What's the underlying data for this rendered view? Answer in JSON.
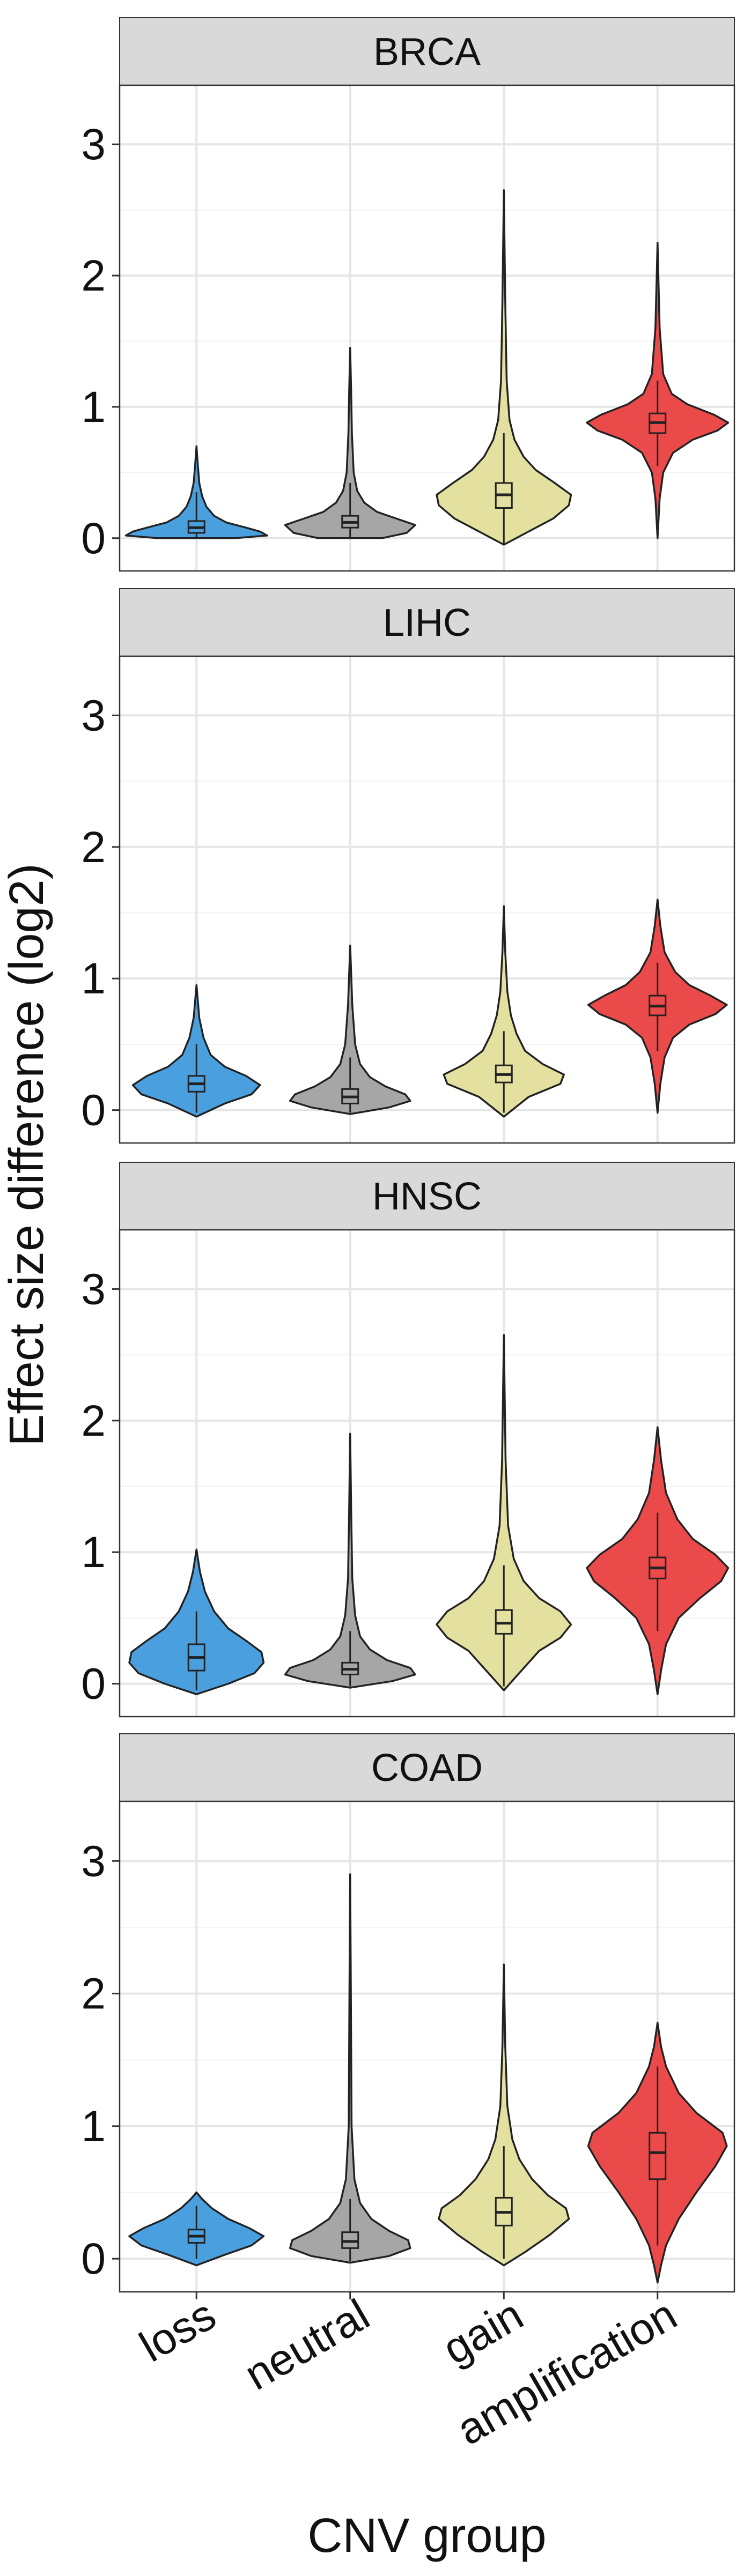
{
  "chart_data": {
    "type": "violin",
    "facet_by": "cancer type",
    "xlabel": "CNV group",
    "ylabel": "Effect size difference (log2)",
    "ylim": [
      -0.25,
      3.45
    ],
    "yticks": [
      0,
      1,
      2,
      3
    ],
    "grid": true,
    "legend": "none",
    "categories": [
      "loss",
      "neutral",
      "gain",
      "amplification"
    ],
    "colors": {
      "loss": "#4A9FDF",
      "neutral": "#A6A6A6",
      "gain": "#E3E0A0",
      "amplification": "#EA4A4A"
    },
    "facet_strip_color": "#D9D9D9",
    "panels": [
      {
        "label": "BRCA",
        "groups": [
          {
            "category": "loss",
            "min": 0.0,
            "max": 0.7,
            "q1": 0.04,
            "median": 0.08,
            "q3": 0.13,
            "whisker_low": 0.0,
            "whisker_high": 0.35,
            "density": [
              [
                0.0,
                0.55
              ],
              [
                0.02,
                1.0
              ],
              [
                0.05,
                0.9
              ],
              [
                0.08,
                0.7
              ],
              [
                0.12,
                0.42
              ],
              [
                0.17,
                0.25
              ],
              [
                0.24,
                0.14
              ],
              [
                0.32,
                0.08
              ],
              [
                0.42,
                0.04
              ],
              [
                0.55,
                0.02
              ],
              [
                0.7,
                0.0
              ]
            ]
          },
          {
            "category": "neutral",
            "min": 0.0,
            "max": 1.45,
            "q1": 0.08,
            "median": 0.12,
            "q3": 0.17,
            "whisker_low": 0.0,
            "whisker_high": 0.42,
            "density": [
              [
                0.0,
                0.45
              ],
              [
                0.04,
                0.8
              ],
              [
                0.1,
                0.92
              ],
              [
                0.15,
                0.65
              ],
              [
                0.2,
                0.38
              ],
              [
                0.27,
                0.2
              ],
              [
                0.36,
                0.1
              ],
              [
                0.5,
                0.05
              ],
              [
                0.8,
                0.025
              ],
              [
                1.1,
                0.015
              ],
              [
                1.45,
                0.0
              ]
            ]
          },
          {
            "category": "gain",
            "min": -0.05,
            "max": 2.65,
            "q1": 0.23,
            "median": 0.33,
            "q3": 0.42,
            "whisker_low": -0.05,
            "whisker_high": 0.8,
            "density": [
              [
                -0.05,
                0.0
              ],
              [
                0.05,
                0.35
              ],
              [
                0.15,
                0.7
              ],
              [
                0.25,
                0.92
              ],
              [
                0.33,
                0.95
              ],
              [
                0.42,
                0.72
              ],
              [
                0.52,
                0.45
              ],
              [
                0.62,
                0.28
              ],
              [
                0.75,
                0.15
              ],
              [
                0.9,
                0.08
              ],
              [
                1.2,
                0.04
              ],
              [
                1.8,
                0.02
              ],
              [
                2.65,
                0.0
              ]
            ]
          },
          {
            "category": "amplification",
            "min": 0.0,
            "max": 2.25,
            "q1": 0.8,
            "median": 0.88,
            "q3": 0.95,
            "whisker_low": 0.55,
            "whisker_high": 1.2,
            "density": [
              [
                0.0,
                0.0
              ],
              [
                0.3,
                0.03
              ],
              [
                0.5,
                0.08
              ],
              [
                0.65,
                0.22
              ],
              [
                0.75,
                0.5
              ],
              [
                0.82,
                0.85
              ],
              [
                0.88,
                1.0
              ],
              [
                0.94,
                0.8
              ],
              [
                1.02,
                0.42
              ],
              [
                1.1,
                0.2
              ],
              [
                1.25,
                0.08
              ],
              [
                1.6,
                0.03
              ],
              [
                2.25,
                0.0
              ]
            ]
          }
        ]
      },
      {
        "label": "LIHC",
        "groups": [
          {
            "category": "loss",
            "min": -0.05,
            "max": 0.95,
            "q1": 0.14,
            "median": 0.2,
            "q3": 0.26,
            "whisker_low": -0.02,
            "whisker_high": 0.5,
            "density": [
              [
                -0.05,
                0.0
              ],
              [
                0.05,
                0.4
              ],
              [
                0.12,
                0.78
              ],
              [
                0.19,
                0.9
              ],
              [
                0.26,
                0.7
              ],
              [
                0.33,
                0.4
              ],
              [
                0.42,
                0.2
              ],
              [
                0.55,
                0.1
              ],
              [
                0.7,
                0.04
              ],
              [
                0.95,
                0.0
              ]
            ]
          },
          {
            "category": "neutral",
            "min": -0.03,
            "max": 1.25,
            "q1": 0.05,
            "median": 0.1,
            "q3": 0.16,
            "whisker_low": -0.02,
            "whisker_high": 0.4,
            "density": [
              [
                -0.03,
                0.0
              ],
              [
                0.02,
                0.55
              ],
              [
                0.07,
                0.85
              ],
              [
                0.12,
                0.78
              ],
              [
                0.18,
                0.5
              ],
              [
                0.25,
                0.28
              ],
              [
                0.35,
                0.14
              ],
              [
                0.5,
                0.07
              ],
              [
                0.8,
                0.03
              ],
              [
                1.25,
                0.0
              ]
            ]
          },
          {
            "category": "gain",
            "min": -0.05,
            "max": 1.55,
            "q1": 0.21,
            "median": 0.27,
            "q3": 0.34,
            "whisker_low": -0.02,
            "whisker_high": 0.6,
            "density": [
              [
                -0.05,
                0.0
              ],
              [
                0.1,
                0.35
              ],
              [
                0.2,
                0.8
              ],
              [
                0.27,
                0.85
              ],
              [
                0.35,
                0.55
              ],
              [
                0.45,
                0.3
              ],
              [
                0.58,
                0.18
              ],
              [
                0.72,
                0.1
              ],
              [
                0.9,
                0.05
              ],
              [
                1.2,
                0.02
              ],
              [
                1.55,
                0.0
              ]
            ]
          },
          {
            "category": "amplification",
            "min": -0.02,
            "max": 1.6,
            "q1": 0.72,
            "median": 0.79,
            "q3": 0.87,
            "whisker_low": 0.45,
            "whisker_high": 1.12,
            "density": [
              [
                -0.02,
                0.0
              ],
              [
                0.2,
                0.04
              ],
              [
                0.4,
                0.1
              ],
              [
                0.55,
                0.22
              ],
              [
                0.65,
                0.45
              ],
              [
                0.73,
                0.82
              ],
              [
                0.8,
                0.98
              ],
              [
                0.87,
                0.75
              ],
              [
                0.95,
                0.45
              ],
              [
                1.05,
                0.25
              ],
              [
                1.2,
                0.1
              ],
              [
                1.4,
                0.04
              ],
              [
                1.6,
                0.0
              ]
            ]
          }
        ]
      },
      {
        "label": "HNSC",
        "groups": [
          {
            "category": "loss",
            "min": -0.08,
            "max": 1.02,
            "q1": 0.1,
            "median": 0.2,
            "q3": 0.3,
            "whisker_low": -0.05,
            "whisker_high": 0.55,
            "density": [
              [
                -0.08,
                0.0
              ],
              [
                0.0,
                0.45
              ],
              [
                0.08,
                0.82
              ],
              [
                0.16,
                0.95
              ],
              [
                0.24,
                0.92
              ],
              [
                0.32,
                0.72
              ],
              [
                0.42,
                0.45
              ],
              [
                0.55,
                0.25
              ],
              [
                0.7,
                0.12
              ],
              [
                0.85,
                0.05
              ],
              [
                1.02,
                0.0
              ]
            ]
          },
          {
            "category": "neutral",
            "min": -0.03,
            "max": 1.9,
            "q1": 0.07,
            "median": 0.11,
            "q3": 0.16,
            "whisker_low": -0.02,
            "whisker_high": 0.4,
            "density": [
              [
                -0.03,
                0.0
              ],
              [
                0.02,
                0.6
              ],
              [
                0.07,
                0.92
              ],
              [
                0.12,
                0.85
              ],
              [
                0.18,
                0.52
              ],
              [
                0.26,
                0.28
              ],
              [
                0.36,
                0.14
              ],
              [
                0.52,
                0.07
              ],
              [
                0.8,
                0.03
              ],
              [
                1.3,
                0.015
              ],
              [
                1.9,
                0.0
              ]
            ]
          },
          {
            "category": "gain",
            "min": -0.05,
            "max": 2.65,
            "q1": 0.38,
            "median": 0.46,
            "q3": 0.56,
            "whisker_low": -0.02,
            "whisker_high": 0.9,
            "density": [
              [
                -0.05,
                0.0
              ],
              [
                0.1,
                0.25
              ],
              [
                0.25,
                0.5
              ],
              [
                0.35,
                0.8
              ],
              [
                0.45,
                0.95
              ],
              [
                0.55,
                0.8
              ],
              [
                0.65,
                0.5
              ],
              [
                0.78,
                0.28
              ],
              [
                0.95,
                0.14
              ],
              [
                1.2,
                0.06
              ],
              [
                1.7,
                0.025
              ],
              [
                2.65,
                0.0
              ]
            ]
          },
          {
            "category": "amplification",
            "min": -0.08,
            "max": 1.95,
            "q1": 0.8,
            "median": 0.88,
            "q3": 0.96,
            "whisker_low": 0.4,
            "whisker_high": 1.3,
            "density": [
              [
                -0.08,
                0.0
              ],
              [
                0.1,
                0.05
              ],
              [
                0.3,
                0.12
              ],
              [
                0.5,
                0.3
              ],
              [
                0.65,
                0.6
              ],
              [
                0.78,
                0.9
              ],
              [
                0.88,
                1.0
              ],
              [
                0.98,
                0.82
              ],
              [
                1.1,
                0.5
              ],
              [
                1.25,
                0.28
              ],
              [
                1.45,
                0.12
              ],
              [
                1.7,
                0.05
              ],
              [
                1.95,
                0.0
              ]
            ]
          }
        ]
      },
      {
        "label": "COAD",
        "groups": [
          {
            "category": "loss",
            "min": -0.05,
            "max": 0.5,
            "q1": 0.12,
            "median": 0.17,
            "q3": 0.22,
            "whisker_low": 0.0,
            "whisker_high": 0.4,
            "density": [
              [
                -0.05,
                0.0
              ],
              [
                0.03,
                0.4
              ],
              [
                0.1,
                0.78
              ],
              [
                0.17,
                0.95
              ],
              [
                0.23,
                0.75
              ],
              [
                0.3,
                0.45
              ],
              [
                0.38,
                0.22
              ],
              [
                0.45,
                0.08
              ],
              [
                0.5,
                0.0
              ]
            ]
          },
          {
            "category": "neutral",
            "min": -0.03,
            "max": 2.9,
            "q1": 0.08,
            "median": 0.13,
            "q3": 0.2,
            "whisker_low": -0.02,
            "whisker_high": 0.45,
            "density": [
              [
                -0.03,
                0.0
              ],
              [
                0.02,
                0.55
              ],
              [
                0.08,
                0.85
              ],
              [
                0.14,
                0.82
              ],
              [
                0.21,
                0.55
              ],
              [
                0.3,
                0.3
              ],
              [
                0.42,
                0.14
              ],
              [
                0.6,
                0.06
              ],
              [
                1.0,
                0.02
              ],
              [
                2.0,
                0.01
              ],
              [
                2.9,
                0.0
              ]
            ]
          },
          {
            "category": "gain",
            "min": -0.05,
            "max": 2.22,
            "q1": 0.25,
            "median": 0.35,
            "q3": 0.46,
            "whisker_low": 0.0,
            "whisker_high": 0.85,
            "density": [
              [
                -0.05,
                0.0
              ],
              [
                0.05,
                0.3
              ],
              [
                0.18,
                0.65
              ],
              [
                0.3,
                0.92
              ],
              [
                0.38,
                0.88
              ],
              [
                0.48,
                0.62
              ],
              [
                0.6,
                0.4
              ],
              [
                0.75,
                0.22
              ],
              [
                0.9,
                0.12
              ],
              [
                1.15,
                0.05
              ],
              [
                1.6,
                0.02
              ],
              [
                2.22,
                0.0
              ]
            ]
          },
          {
            "category": "amplification",
            "min": -0.18,
            "max": 1.78,
            "q1": 0.6,
            "median": 0.8,
            "q3": 0.95,
            "whisker_low": 0.1,
            "whisker_high": 1.45,
            "density": [
              [
                -0.18,
                0.0
              ],
              [
                -0.05,
                0.05
              ],
              [
                0.1,
                0.12
              ],
              [
                0.3,
                0.3
              ],
              [
                0.5,
                0.55
              ],
              [
                0.7,
                0.82
              ],
              [
                0.85,
                0.98
              ],
              [
                0.95,
                0.92
              ],
              [
                1.1,
                0.55
              ],
              [
                1.25,
                0.3
              ],
              [
                1.45,
                0.12
              ],
              [
                1.6,
                0.05
              ],
              [
                1.78,
                0.0
              ]
            ]
          }
        ]
      }
    ]
  }
}
